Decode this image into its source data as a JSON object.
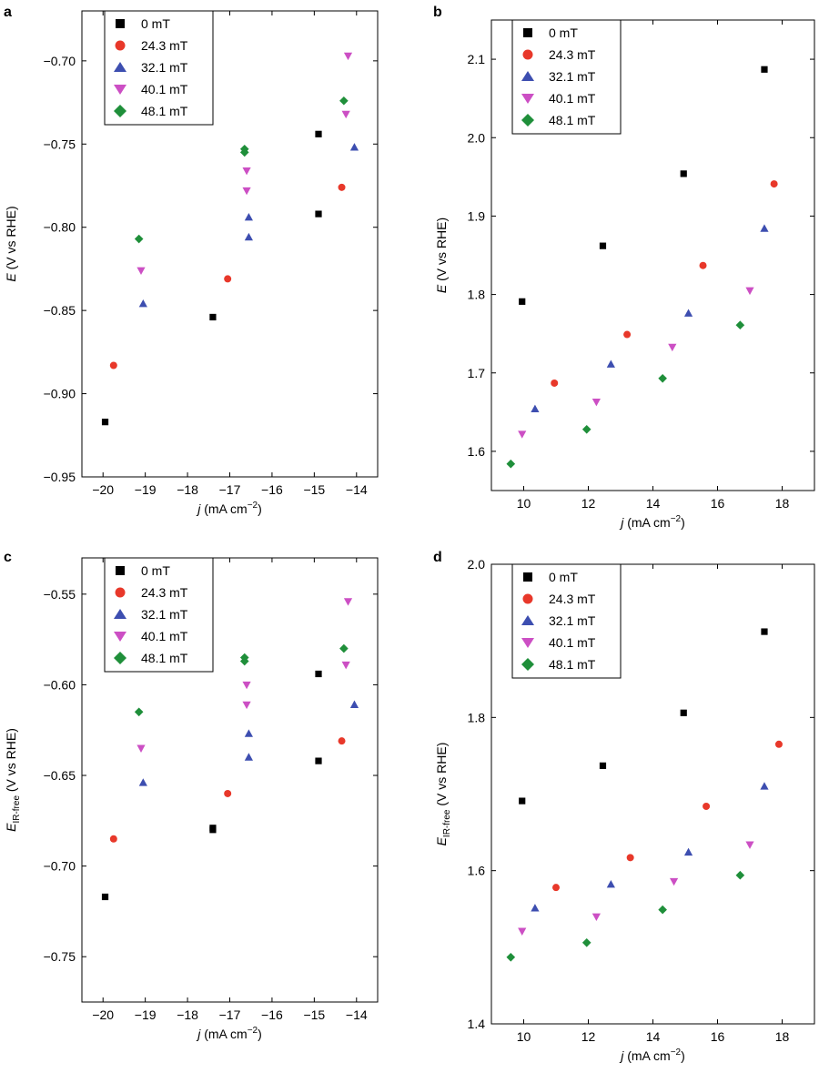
{
  "series_colors": {
    "0 mT": "#000000",
    "24.3 mT": "#e8382a",
    "32.1 mT": "#3d4eb0",
    "40.1 mT": "#cc4fc4",
    "48.1 mT": "#1f8f3a"
  },
  "chart_data": [
    {
      "type": "scatter",
      "panel": "a",
      "xlabel_italic": "j",
      "xlabel_rest": " (mA cm",
      "xlabel_sup": "−2",
      "xlabel_end": ")",
      "ylabel_italic": "E",
      "ylabel_sub": "",
      "ylabel_rest": " (V vs RHE)",
      "xlim": [
        -20.5,
        -13.5
      ],
      "ylim": [
        -0.95,
        -0.67
      ],
      "xticks": [
        -20,
        -19,
        -18,
        -17,
        -16,
        -15,
        -14
      ],
      "xtick_labels": [
        "−20",
        "−19",
        "−18",
        "−17",
        "−16",
        "−15",
        "−14"
      ],
      "yticks": [
        -0.95,
        -0.9,
        -0.85,
        -0.8,
        -0.75,
        -0.7
      ],
      "ytick_labels": [
        "−0.95",
        "−0.90",
        "−0.85",
        "−0.80",
        "−0.75",
        "−0.70"
      ],
      "legend": [
        "0 mT",
        "24.3 mT",
        "32.1 mT",
        "40.1 mT",
        "48.1 mT"
      ],
      "series": [
        {
          "name": "0 mT",
          "marker": "square",
          "x": [
            -19.95,
            -17.4,
            -14.9,
            -14.9
          ],
          "y": [
            -0.917,
            -0.854,
            -0.792,
            -0.744
          ]
        },
        {
          "name": "24.3 mT",
          "marker": "circle",
          "x": [
            -19.75,
            -17.05,
            -14.35
          ],
          "y": [
            -0.883,
            -0.831,
            -0.776
          ]
        },
        {
          "name": "32.1 mT",
          "marker": "triangle-up",
          "x": [
            -19.05,
            -16.55,
            -16.55,
            -14.05
          ],
          "y": [
            -0.846,
            -0.806,
            -0.794,
            -0.752
          ]
        },
        {
          "name": "40.1 mT",
          "marker": "triangle-down",
          "x": [
            -19.1,
            -16.6,
            -16.6,
            -14.25,
            -14.2
          ],
          "y": [
            -0.826,
            -0.778,
            -0.766,
            -0.732,
            -0.697
          ]
        },
        {
          "name": "48.1 mT",
          "marker": "diamond",
          "x": [
            -19.15,
            -16.65,
            -16.65,
            -14.3
          ],
          "y": [
            -0.807,
            -0.755,
            -0.753,
            -0.724
          ]
        }
      ]
    },
    {
      "type": "scatter",
      "panel": "b",
      "xlabel_italic": "j",
      "xlabel_rest": " (mA cm",
      "xlabel_sup": "−2",
      "xlabel_end": ")",
      "ylabel_italic": "E",
      "ylabel_sub": "",
      "ylabel_rest": " (V vs RHE)",
      "xlim": [
        9,
        19
      ],
      "ylim": [
        1.55,
        2.15
      ],
      "xticks": [
        10,
        12,
        14,
        16,
        18
      ],
      "xtick_labels": [
        "10",
        "12",
        "14",
        "16",
        "18"
      ],
      "yticks": [
        1.6,
        1.7,
        1.8,
        1.9,
        2.0,
        2.1
      ],
      "ytick_labels": [
        "1.6",
        "1.7",
        "1.8",
        "1.9",
        "2.0",
        "2.1"
      ],
      "legend": [
        "0 mT",
        "24.3 mT",
        "32.1 mT",
        "40.1 mT",
        "48.1 mT"
      ],
      "series": [
        {
          "name": "0 mT",
          "marker": "square",
          "x": [
            9.95,
            12.45,
            14.95,
            17.45
          ],
          "y": [
            1.791,
            1.862,
            1.954,
            2.087
          ]
        },
        {
          "name": "24.3 mT",
          "marker": "circle",
          "x": [
            10.95,
            13.2,
            15.55,
            17.75
          ],
          "y": [
            1.687,
            1.749,
            1.837,
            1.941
          ]
        },
        {
          "name": "32.1 mT",
          "marker": "triangle-up",
          "x": [
            10.35,
            12.7,
            15.1,
            17.45
          ],
          "y": [
            1.654,
            1.711,
            1.776,
            1.884
          ]
        },
        {
          "name": "40.1 mT",
          "marker": "triangle-down",
          "x": [
            9.95,
            12.25,
            14.6,
            17.0
          ],
          "y": [
            1.622,
            1.663,
            1.733,
            1.805
          ]
        },
        {
          "name": "48.1 mT",
          "marker": "diamond",
          "x": [
            9.6,
            11.95,
            14.3,
            16.7
          ],
          "y": [
            1.584,
            1.628,
            1.693,
            1.761
          ]
        }
      ]
    },
    {
      "type": "scatter",
      "panel": "c",
      "xlabel_italic": "j",
      "xlabel_rest": " (mA cm",
      "xlabel_sup": "−2",
      "xlabel_end": ")",
      "ylabel_italic": "E",
      "ylabel_sub": "IR-free",
      "ylabel_rest": " (V vs RHE)",
      "xlim": [
        -20.5,
        -13.5
      ],
      "ylim": [
        -0.775,
        -0.53
      ],
      "xticks": [
        -20,
        -19,
        -18,
        -17,
        -16,
        -15,
        -14
      ],
      "xtick_labels": [
        "−20",
        "−19",
        "−18",
        "−17",
        "−16",
        "−15",
        "−14"
      ],
      "yticks": [
        -0.75,
        -0.7,
        -0.65,
        -0.6,
        -0.55
      ],
      "ytick_labels": [
        "−0.75",
        "−0.70",
        "−0.65",
        "−0.60",
        "−0.55"
      ],
      "legend": [
        "0 mT",
        "24.3 mT",
        "32.1 mT",
        "40.1 mT",
        "48.1 mT"
      ],
      "series": [
        {
          "name": "0 mT",
          "marker": "square",
          "x": [
            -19.95,
            -17.4,
            -17.4,
            -14.9,
            -14.9
          ],
          "y": [
            -0.717,
            -0.68,
            -0.679,
            -0.642,
            -0.594
          ]
        },
        {
          "name": "24.3 mT",
          "marker": "circle",
          "x": [
            -19.75,
            -17.05,
            -14.35
          ],
          "y": [
            -0.685,
            -0.66,
            -0.631
          ]
        },
        {
          "name": "32.1 mT",
          "marker": "triangle-up",
          "x": [
            -19.05,
            -16.55,
            -16.55,
            -14.05
          ],
          "y": [
            -0.654,
            -0.64,
            -0.627,
            -0.611
          ]
        },
        {
          "name": "40.1 mT",
          "marker": "triangle-down",
          "x": [
            -19.1,
            -16.6,
            -16.6,
            -14.25,
            -14.2
          ],
          "y": [
            -0.635,
            -0.611,
            -0.6,
            -0.589,
            -0.554
          ]
        },
        {
          "name": "48.1 mT",
          "marker": "diamond",
          "x": [
            -19.15,
            -16.65,
            -16.65,
            -14.3
          ],
          "y": [
            -0.615,
            -0.587,
            -0.585,
            -0.58
          ]
        }
      ]
    },
    {
      "type": "scatter",
      "panel": "d",
      "xlabel_italic": "j",
      "xlabel_rest": " (mA cm",
      "xlabel_sup": "−2",
      "xlabel_end": ")",
      "ylabel_italic": "E",
      "ylabel_sub": "IR-free",
      "ylabel_rest": " (V vs RHE)",
      "xlim": [
        9,
        19
      ],
      "ylim": [
        1.4,
        2.0
      ],
      "xticks": [
        10,
        12,
        14,
        16,
        18
      ],
      "xtick_labels": [
        "10",
        "12",
        "14",
        "16",
        "18"
      ],
      "yticks": [
        1.4,
        1.6,
        1.8,
        2.0
      ],
      "ytick_labels": [
        "1.4",
        "1.6",
        "1.8",
        "2.0"
      ],
      "legend": [
        "0 mT",
        "24.3 mT",
        "32.1 mT",
        "40.1 mT",
        "48.1 mT"
      ],
      "series": [
        {
          "name": "0 mT",
          "marker": "square",
          "x": [
            9.95,
            12.45,
            14.95,
            17.45
          ],
          "y": [
            1.691,
            1.737,
            1.806,
            1.912
          ]
        },
        {
          "name": "24.3 mT",
          "marker": "circle",
          "x": [
            11.0,
            13.3,
            15.65,
            17.9
          ],
          "y": [
            1.578,
            1.617,
            1.684,
            1.765
          ]
        },
        {
          "name": "32.1 mT",
          "marker": "triangle-up",
          "x": [
            10.35,
            12.7,
            15.1,
            17.45
          ],
          "y": [
            1.551,
            1.582,
            1.624,
            1.71
          ]
        },
        {
          "name": "40.1 mT",
          "marker": "triangle-down",
          "x": [
            9.95,
            12.25,
            14.65,
            17.0
          ],
          "y": [
            1.521,
            1.54,
            1.586,
            1.634
          ]
        },
        {
          "name": "48.1 mT",
          "marker": "diamond",
          "x": [
            9.6,
            11.95,
            14.3,
            16.7
          ],
          "y": [
            1.487,
            1.506,
            1.549,
            1.594
          ]
        }
      ]
    }
  ]
}
